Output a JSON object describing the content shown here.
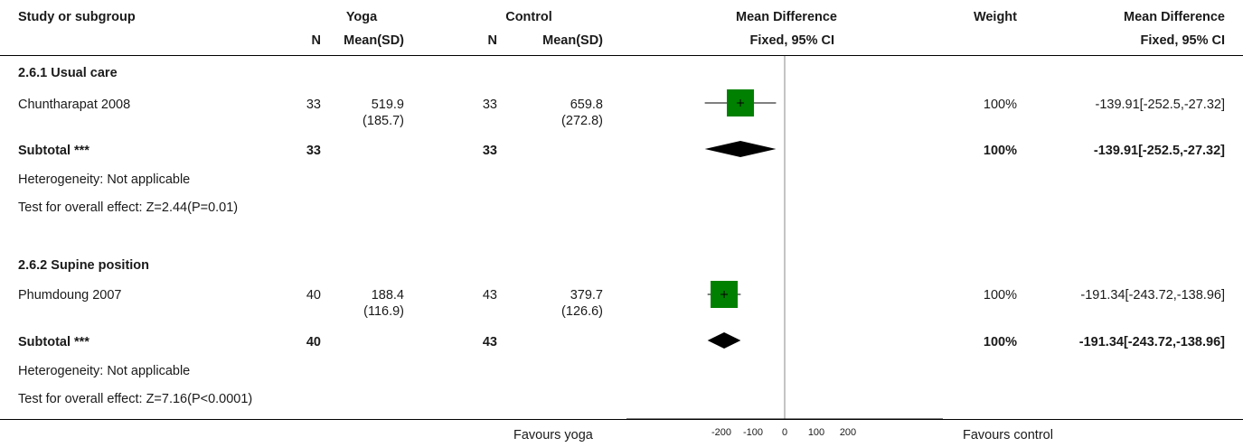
{
  "header": {
    "study_or_subgroup": "Study or subgroup",
    "yoga": "Yoga",
    "control": "Control",
    "mean_difference": "Mean Difference",
    "weight": "Weight",
    "mean_difference_right": "Mean Difference",
    "n": "N",
    "mean_sd": "Mean(SD)",
    "fixed_ci": "Fixed, 95% CI"
  },
  "subgroups": [
    {
      "title": "2.6.1 Usual care",
      "study": {
        "name": "Chuntharapat 2008",
        "yoga_n": "33",
        "yoga_mean": "519.9",
        "yoga_sd": "(185.7)",
        "control_n": "33",
        "control_mean": "659.8",
        "control_sd": "(272.8)",
        "weight": "100%",
        "ci_text": "-139.91[-252.5,-27.32]"
      },
      "subtotal": {
        "label": "Subtotal ***",
        "yoga_n": "33",
        "control_n": "33",
        "weight": "100%",
        "ci_text": "-139.91[-252.5,-27.32]"
      },
      "heterogeneity": "Heterogeneity: Not applicable",
      "overall_effect": "Test for overall effect: Z=2.44(P=0.01)"
    },
    {
      "title": "2.6.2 Supine position",
      "study": {
        "name": "Phumdoung 2007",
        "yoga_n": "40",
        "yoga_mean": "188.4",
        "yoga_sd": "(116.9)",
        "control_n": "43",
        "control_mean": "379.7",
        "control_sd": "(126.6)",
        "weight": "100%",
        "ci_text": "-191.34[-243.72,-138.96]"
      },
      "subtotal": {
        "label": "Subtotal ***",
        "yoga_n": "40",
        "control_n": "43",
        "weight": "100%",
        "ci_text": "-191.34[-243.72,-138.96]"
      },
      "heterogeneity": "Heterogeneity: Not applicable",
      "overall_effect": "Test for overall effect: Z=7.16(P<0.0001)"
    }
  ],
  "footer": {
    "favours_left": "Favours yoga",
    "favours_right": "Favours control"
  },
  "colors": {
    "study_marker": "#008000",
    "diamond": "#000000",
    "line": "#000000"
  },
  "chart_data": {
    "type": "forest",
    "xlim": [
      -500,
      500
    ],
    "x_ticks": [
      -200,
      -100,
      0,
      100,
      200
    ],
    "x_tick_labels": [
      "-200",
      "-100",
      "0",
      "100",
      "200"
    ],
    "studies": [
      {
        "name": "Chuntharapat 2008",
        "estimate": -139.91,
        "ci_low": -252.5,
        "ci_high": -27.32,
        "weight": 100
      },
      {
        "name": "Phumdoung 2007",
        "estimate": -191.34,
        "ci_low": -243.72,
        "ci_high": -138.96,
        "weight": 100
      }
    ],
    "subtotals": [
      {
        "name": "Subtotal 2.6.1 Usual care",
        "estimate": -139.91,
        "ci_low": -252.5,
        "ci_high": -27.32
      },
      {
        "name": "Subtotal 2.6.2 Supine position",
        "estimate": -191.34,
        "ci_low": -243.72,
        "ci_high": -138.96
      }
    ]
  }
}
